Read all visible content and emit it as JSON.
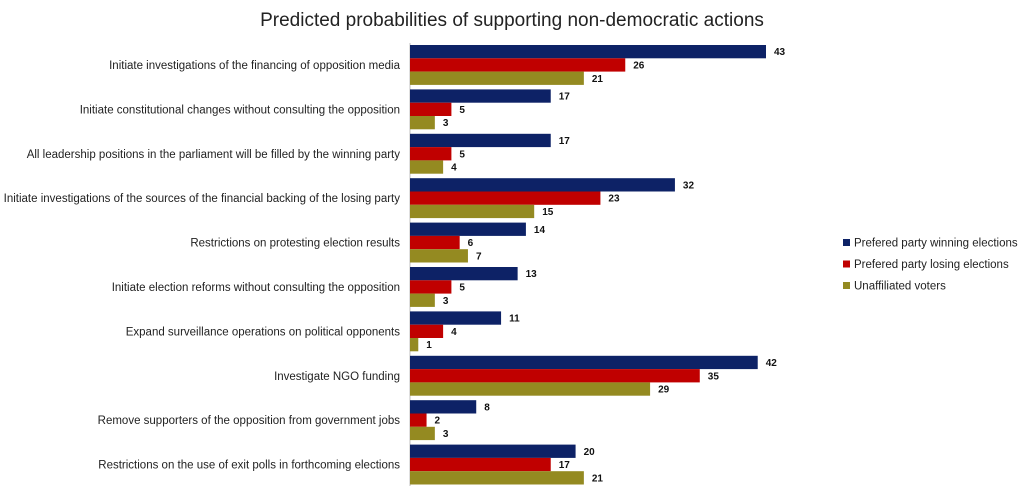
{
  "chart_data": {
    "type": "bar",
    "orientation": "horizontal",
    "title": "Predicted probabilities of supporting non-democratic actions",
    "categories": [
      "Initiate investigations of the financing of opposition media",
      "Initiate constitutional changes without consulting the opposition",
      "All leadership positions in the parliament will be filled by the winning party",
      "Initiate investigations of the sources of the financial backing of the losing party",
      "Restrictions on protesting election results",
      "Initiate election reforms without consulting the opposition",
      "Expand surveillance operations on political opponents",
      "Investigate NGO funding",
      "Remove supporters of the opposition from government jobs",
      "Restrictions on the use of exit polls in forthcoming elections"
    ],
    "series": [
      {
        "name": "Prefered party winning elections",
        "color": "#0d2266",
        "values": [
          43,
          17,
          17,
          32,
          14,
          13,
          11,
          42,
          8,
          20
        ]
      },
      {
        "name": "Prefered party losing elections",
        "color": "#c00000",
        "values": [
          26,
          5,
          5,
          23,
          6,
          5,
          4,
          35,
          2,
          17
        ]
      },
      {
        "name": "Unaffiliated voters",
        "color": "#948a21",
        "values": [
          21,
          3,
          4,
          15,
          7,
          3,
          1,
          29,
          3,
          21
        ]
      }
    ],
    "xlim": [
      0,
      43
    ],
    "data_labels": true,
    "grid": false,
    "legend_position": "right"
  }
}
